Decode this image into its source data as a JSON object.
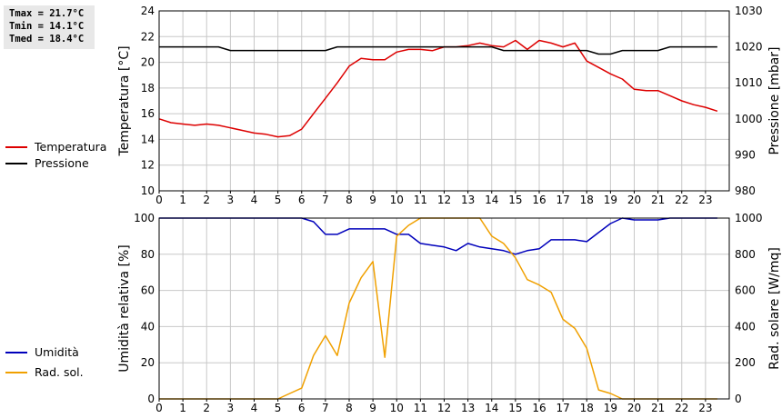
{
  "stats": {
    "tmax": "Tmax = 21.7°C",
    "tmin": "Tmin = 14.1°C",
    "tmed": "Tmed = 18.4°C"
  },
  "colors": {
    "temperatura": "#dd0000",
    "pressione": "#000000",
    "umidita": "#0000bb",
    "rad_sol": "#f0a000",
    "grid": "#c8c8c8"
  },
  "chart_data": [
    {
      "type": "line",
      "y_left_label": "Temperatura [°C]",
      "y_right_label": "Pressione [mbar]",
      "xlim": [
        0,
        24
      ],
      "x_ticks": [
        0,
        1,
        2,
        3,
        4,
        5,
        6,
        7,
        8,
        9,
        10,
        11,
        12,
        13,
        14,
        15,
        16,
        17,
        18,
        19,
        20,
        21,
        22,
        23
      ],
      "y_left_lim": [
        10,
        24
      ],
      "y_left_ticks": [
        10,
        12,
        14,
        16,
        18,
        20,
        22,
        24
      ],
      "y_right_lim": [
        980,
        1030
      ],
      "y_right_ticks": [
        980,
        990,
        1000,
        1010,
        1020,
        1030
      ],
      "grid": true,
      "legend_position": "left",
      "series": [
        {
          "name": "Temperatura",
          "axis": "left",
          "color": "#dd0000",
          "x": [
            0,
            0.5,
            1,
            1.5,
            2,
            2.5,
            3,
            3.5,
            4,
            4.5,
            5,
            5.5,
            6,
            6.5,
            7,
            7.5,
            8,
            8.5,
            9,
            9.5,
            10,
            10.5,
            11,
            11.5,
            12,
            12.5,
            13,
            13.5,
            14,
            14.5,
            15,
            15.5,
            16,
            16.5,
            17,
            17.5,
            18,
            18.5,
            19,
            19.5,
            20,
            20.5,
            21,
            21.5,
            22,
            22.5,
            23,
            23.5
          ],
          "y": [
            15.6,
            15.3,
            15.2,
            15.1,
            15.2,
            15.1,
            14.9,
            14.7,
            14.5,
            14.4,
            14.2,
            14.3,
            14.8,
            16.0,
            17.2,
            18.4,
            19.7,
            20.3,
            20.2,
            20.2,
            20.8,
            21.0,
            21.0,
            20.9,
            21.2,
            21.2,
            21.3,
            21.5,
            21.3,
            21.2,
            21.7,
            21.0,
            21.7,
            21.5,
            21.2,
            21.5,
            20.1,
            19.6,
            19.1,
            18.7,
            17.9,
            17.8,
            17.8,
            17.4,
            17.0,
            16.7,
            16.5,
            16.2
          ]
        },
        {
          "name": "Pressione",
          "axis": "right",
          "color": "#000000",
          "x": [
            0,
            1,
            2,
            2.5,
            3,
            4,
            5,
            6,
            7,
            7.5,
            8,
            9,
            10,
            11,
            12,
            13,
            14,
            14.5,
            15,
            16,
            17,
            18,
            18.5,
            19,
            19.5,
            20,
            21,
            21.5,
            22,
            23,
            23.5
          ],
          "y": [
            1020,
            1020,
            1020,
            1020,
            1019,
            1019,
            1019,
            1019,
            1019,
            1020,
            1020,
            1020,
            1020,
            1020,
            1020,
            1020,
            1020,
            1019,
            1019,
            1019,
            1019,
            1019,
            1018,
            1018,
            1019,
            1019,
            1019,
            1020,
            1020,
            1020,
            1020
          ]
        }
      ]
    },
    {
      "type": "line",
      "y_left_label": "Umidità relativa [%]",
      "y_right_label": "Rad. solare [W/mq]",
      "xlim": [
        0,
        24
      ],
      "x_ticks": [
        0,
        1,
        2,
        3,
        4,
        5,
        6,
        7,
        8,
        9,
        10,
        11,
        12,
        13,
        14,
        15,
        16,
        17,
        18,
        19,
        20,
        21,
        22,
        23
      ],
      "y_left_lim": [
        0,
        100
      ],
      "y_left_ticks": [
        0,
        20,
        40,
        60,
        80,
        100
      ],
      "y_right_lim": [
        0,
        1000
      ],
      "y_right_ticks": [
        0,
        200,
        400,
        600,
        800,
        1000
      ],
      "grid": true,
      "legend_position": "left",
      "series": [
        {
          "name": "Umidità",
          "axis": "left",
          "color": "#0000bb",
          "x": [
            0,
            6,
            6.5,
            7,
            7.5,
            8,
            8.5,
            9,
            9.5,
            10,
            10.5,
            11,
            11.5,
            12,
            12.5,
            13,
            13.5,
            14,
            14.5,
            15,
            15.5,
            16,
            16.5,
            17,
            17.5,
            18,
            18.5,
            19,
            19.5,
            20,
            20.5,
            21,
            21.5,
            22,
            23,
            23.5
          ],
          "y": [
            100,
            100,
            98,
            91,
            91,
            94,
            94,
            94,
            94,
            91,
            91,
            86,
            85,
            84,
            82,
            86,
            84,
            83,
            82,
            80,
            82,
            83,
            88,
            88,
            88,
            87,
            92,
            97,
            100,
            99,
            99,
            99,
            100,
            100,
            100,
            100
          ]
        },
        {
          "name": "Rad. sol.",
          "axis": "right",
          "color": "#f0a000",
          "x": [
            0,
            5,
            5.5,
            6,
            6.5,
            7,
            7.5,
            8,
            8.5,
            9,
            9.5,
            10,
            10.5,
            11,
            11.5,
            12,
            12.5,
            13,
            13.5,
            14,
            14.5,
            15,
            15.5,
            16,
            16.5,
            17,
            17.5,
            18,
            18.5,
            19,
            19.5,
            20,
            21,
            22,
            23,
            23.5
          ],
          "y": [
            0,
            0,
            30,
            60,
            240,
            350,
            240,
            530,
            670,
            760,
            230,
            900,
            960,
            1000,
            1020,
            1050,
            1060,
            1030,
            1000,
            900,
            860,
            780,
            660,
            630,
            590,
            440,
            390,
            280,
            50,
            30,
            0,
            0,
            0,
            0,
            0,
            0
          ]
        }
      ]
    }
  ]
}
